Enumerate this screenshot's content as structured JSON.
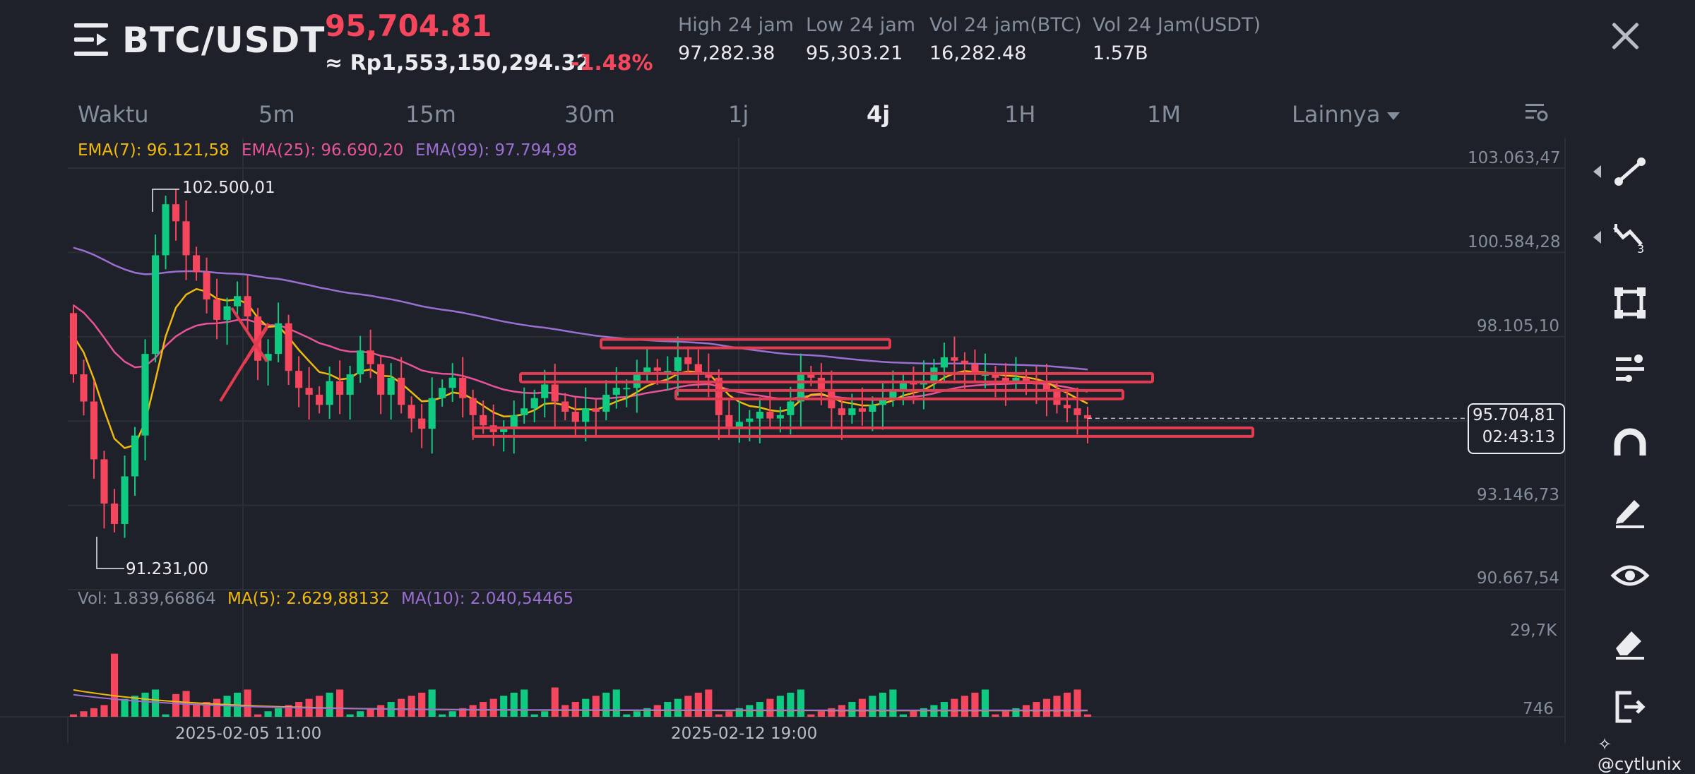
{
  "header": {
    "pair": "BTC/USDT",
    "price": "95,704.81",
    "price_idr": "≈ Rp1,553,150,294.32",
    "change": "-1.48%",
    "stats": [
      {
        "label": "High 24 jam",
        "value": "97,282.38"
      },
      {
        "label": "Low 24 jam",
        "value": "95,303.21"
      },
      {
        "label": "Vol 24 jam(BTC)",
        "value": "16,282.48"
      },
      {
        "label": "Vol 24 Jam(USDT)",
        "value": "1.57B"
      }
    ]
  },
  "timeframes": {
    "label": "Waktu",
    "items": [
      "5m",
      "15m",
      "30m",
      "1j",
      "4j",
      "1H",
      "1M"
    ],
    "active": "4j",
    "more": "Lainnya"
  },
  "indicators": {
    "ema7": "EMA(7): 96.121,58",
    "ema25": "EMA(25): 96.690,20",
    "ema99": "EMA(99): 97.794,98",
    "vol": "Vol: 1.839,66864",
    "ma5": "MA(5): 2.629,88132",
    "ma10": "MA(10): 2.040,54465"
  },
  "price_axis": [
    "103.063,47",
    "100.584,28",
    "98.105,10",
    "93.146,73",
    "90.667,54"
  ],
  "volume_axis": [
    "29,7K",
    "746"
  ],
  "date_axis": [
    "2025-02-05 11:00",
    "2025-02-12 19:00"
  ],
  "markers": {
    "high": "102.500,01",
    "low": "91.231,00"
  },
  "current": {
    "price": "95.704,81",
    "countdown": "02:43:13"
  },
  "toolbar": [
    "trend-line-tool",
    "fibonacci-tool",
    "rectangle-tool",
    "indicator-tool",
    "magnet-tool",
    "pen-tool",
    "visibility-tool",
    "eraser-tool",
    "exit-tool"
  ],
  "watermark": "@cytlunix",
  "colors": {
    "up": "#0ecb81",
    "down": "#f6465d",
    "ema7": "#f0b90b",
    "ema25": "#e8539a",
    "ema99": "#9b6fd1",
    "drawing": "#e23c51",
    "background": "#1e2129"
  },
  "chart_data": {
    "type": "candlestick",
    "title": "BTC/USDT 4j",
    "xlabel": "",
    "ylabel": "",
    "ylim": [
      90667.54,
      103063.47
    ],
    "x_ticks": [
      "2025-02-05 11:00",
      "2025-02-12 19:00"
    ],
    "ohlc_close_series": [
      97000,
      96200,
      94500,
      93200,
      92600,
      94000,
      95200,
      97600,
      100500,
      102000,
      101500,
      100500,
      100000,
      99200,
      98600,
      99000,
      99300,
      98700,
      97400,
      97600,
      98500,
      97100,
      96600,
      96400,
      96100,
      96800,
      96400,
      97000,
      97700,
      97300,
      96400,
      96900,
      96100,
      95700,
      95400,
      96300,
      96600,
      96900,
      96300,
      95800,
      95500,
      95300,
      95400,
      95800,
      96000,
      96300,
      96700,
      96200,
      95900,
      95600,
      96000,
      95900,
      96400,
      96600,
      96600,
      97000,
      97200,
      97100,
      97100,
      97500,
      97300,
      97000,
      96900,
      95800,
      95400,
      95600,
      95700,
      95900,
      95700,
      95800,
      96200,
      97000,
      96900,
      96500,
      96000,
      95800,
      96000,
      95900,
      96100,
      96300,
      96500,
      96800,
      96700,
      96800,
      97200,
      97500,
      97400,
      97300,
      97000,
      97000,
      96900,
      96800,
      96900,
      96800,
      96700,
      96500,
      96100,
      96000,
      95800,
      95700
    ],
    "ema7": 96121.58,
    "ema25": 96690.2,
    "ema99": 97794.98,
    "volume": {
      "last": 1839.66864,
      "ma5": 2629.88132,
      "ma10": 2040.54465,
      "ylim": [
        746,
        29700
      ]
    },
    "high_marker": 102500.01,
    "low_marker": 91231.0,
    "current_price": 95704.81,
    "drawn_levels": [
      97900,
      96900,
      96400,
      95300
    ]
  }
}
